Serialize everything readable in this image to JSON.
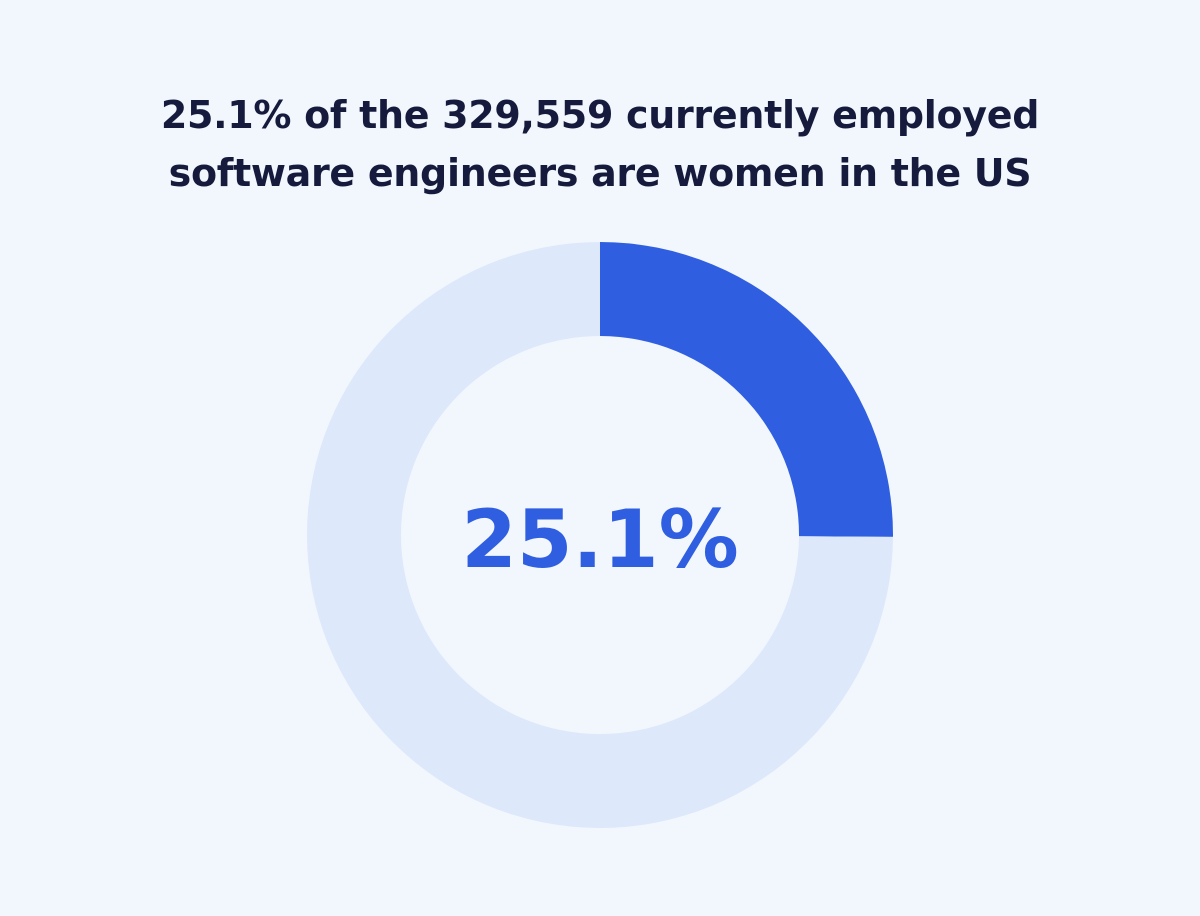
{
  "headline": {
    "line1": "25.1% of the 329,559 currently employed",
    "line2": "software engineers are women in the US"
  },
  "chart_data": {
    "type": "pie",
    "variant": "donut",
    "title": "25.1% of the 329,559 currently employed software engineers are women in the US",
    "center_label": "25.1%",
    "slices": [
      {
        "value": 25.1,
        "color": "#2f5fe0"
      },
      {
        "value": 74.9,
        "color": "#dde8fb"
      }
    ]
  },
  "colors": {
    "background": "#f2f7fd",
    "headline_text": "#161b3d",
    "accent": "#2f5fe0",
    "track": "#dde8fb"
  }
}
